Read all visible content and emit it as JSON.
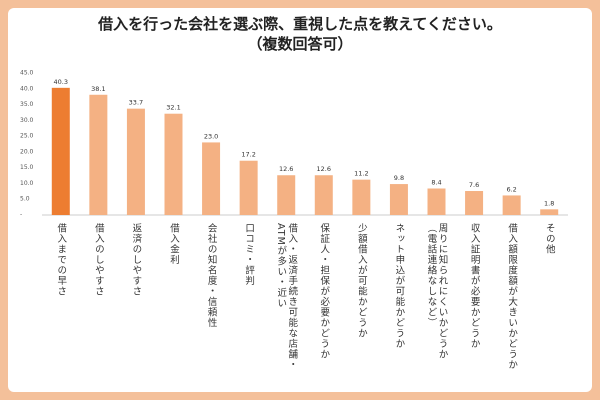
{
  "chart_data": {
    "type": "bar",
    "title": "借入を行った会社を選ぶ際、重視した点を教えてください。",
    "subtitle": "（複数回答可）",
    "categories": [
      "借入までの早さ",
      "借入のしやすさ",
      "返済のしやすさ",
      "借入金利",
      "会社の知名度・信頼性",
      "口コミ・評判",
      "借入・返済手続き可能な店舗・\nATMが多い・近い",
      "保証人・担保が必要かどうか",
      "少額借入が可能かどうか",
      "ネット申込が可能かどうか",
      "周りに知られにくいかどうか\n（電話連絡なしなど）",
      "収入証明書が必要かどうか",
      "借入額限度額が大きいかどうか",
      "その他"
    ],
    "values": [
      40.3,
      38.1,
      33.7,
      32.1,
      23.0,
      17.2,
      12.6,
      12.6,
      11.2,
      9.8,
      8.4,
      7.6,
      6.2,
      1.8
    ],
    "value_labels": [
      "40.3",
      "38.1",
      "33.7",
      "32.1",
      "23.0",
      "17.2",
      "12.6",
      "12.6",
      "11.2",
      "9.8",
      "8.4",
      "7.6",
      "6.2",
      "1.8"
    ],
    "colors": [
      "#ed7d31",
      "#f4b183",
      "#f4b183",
      "#f4b183",
      "#f4b183",
      "#f4b183",
      "#f4b183",
      "#f4b183",
      "#f4b183",
      "#f4b183",
      "#f4b183",
      "#f4b183",
      "#f4b183",
      "#f4b183"
    ],
    "ylim": [
      0,
      45
    ],
    "yticks": [
      {
        "value": 0,
        "label": "-"
      },
      {
        "value": 5,
        "label": "5.0"
      },
      {
        "value": 10,
        "label": "10.0"
      },
      {
        "value": 15,
        "label": "15.0"
      },
      {
        "value": 20,
        "label": "20.0"
      },
      {
        "value": 25,
        "label": "25.0"
      },
      {
        "value": 30,
        "label": "30.0"
      },
      {
        "value": 35,
        "label": "35.0"
      },
      {
        "value": 40,
        "label": "40.0"
      },
      {
        "value": 45,
        "label": "45.0"
      }
    ],
    "grid": false
  }
}
